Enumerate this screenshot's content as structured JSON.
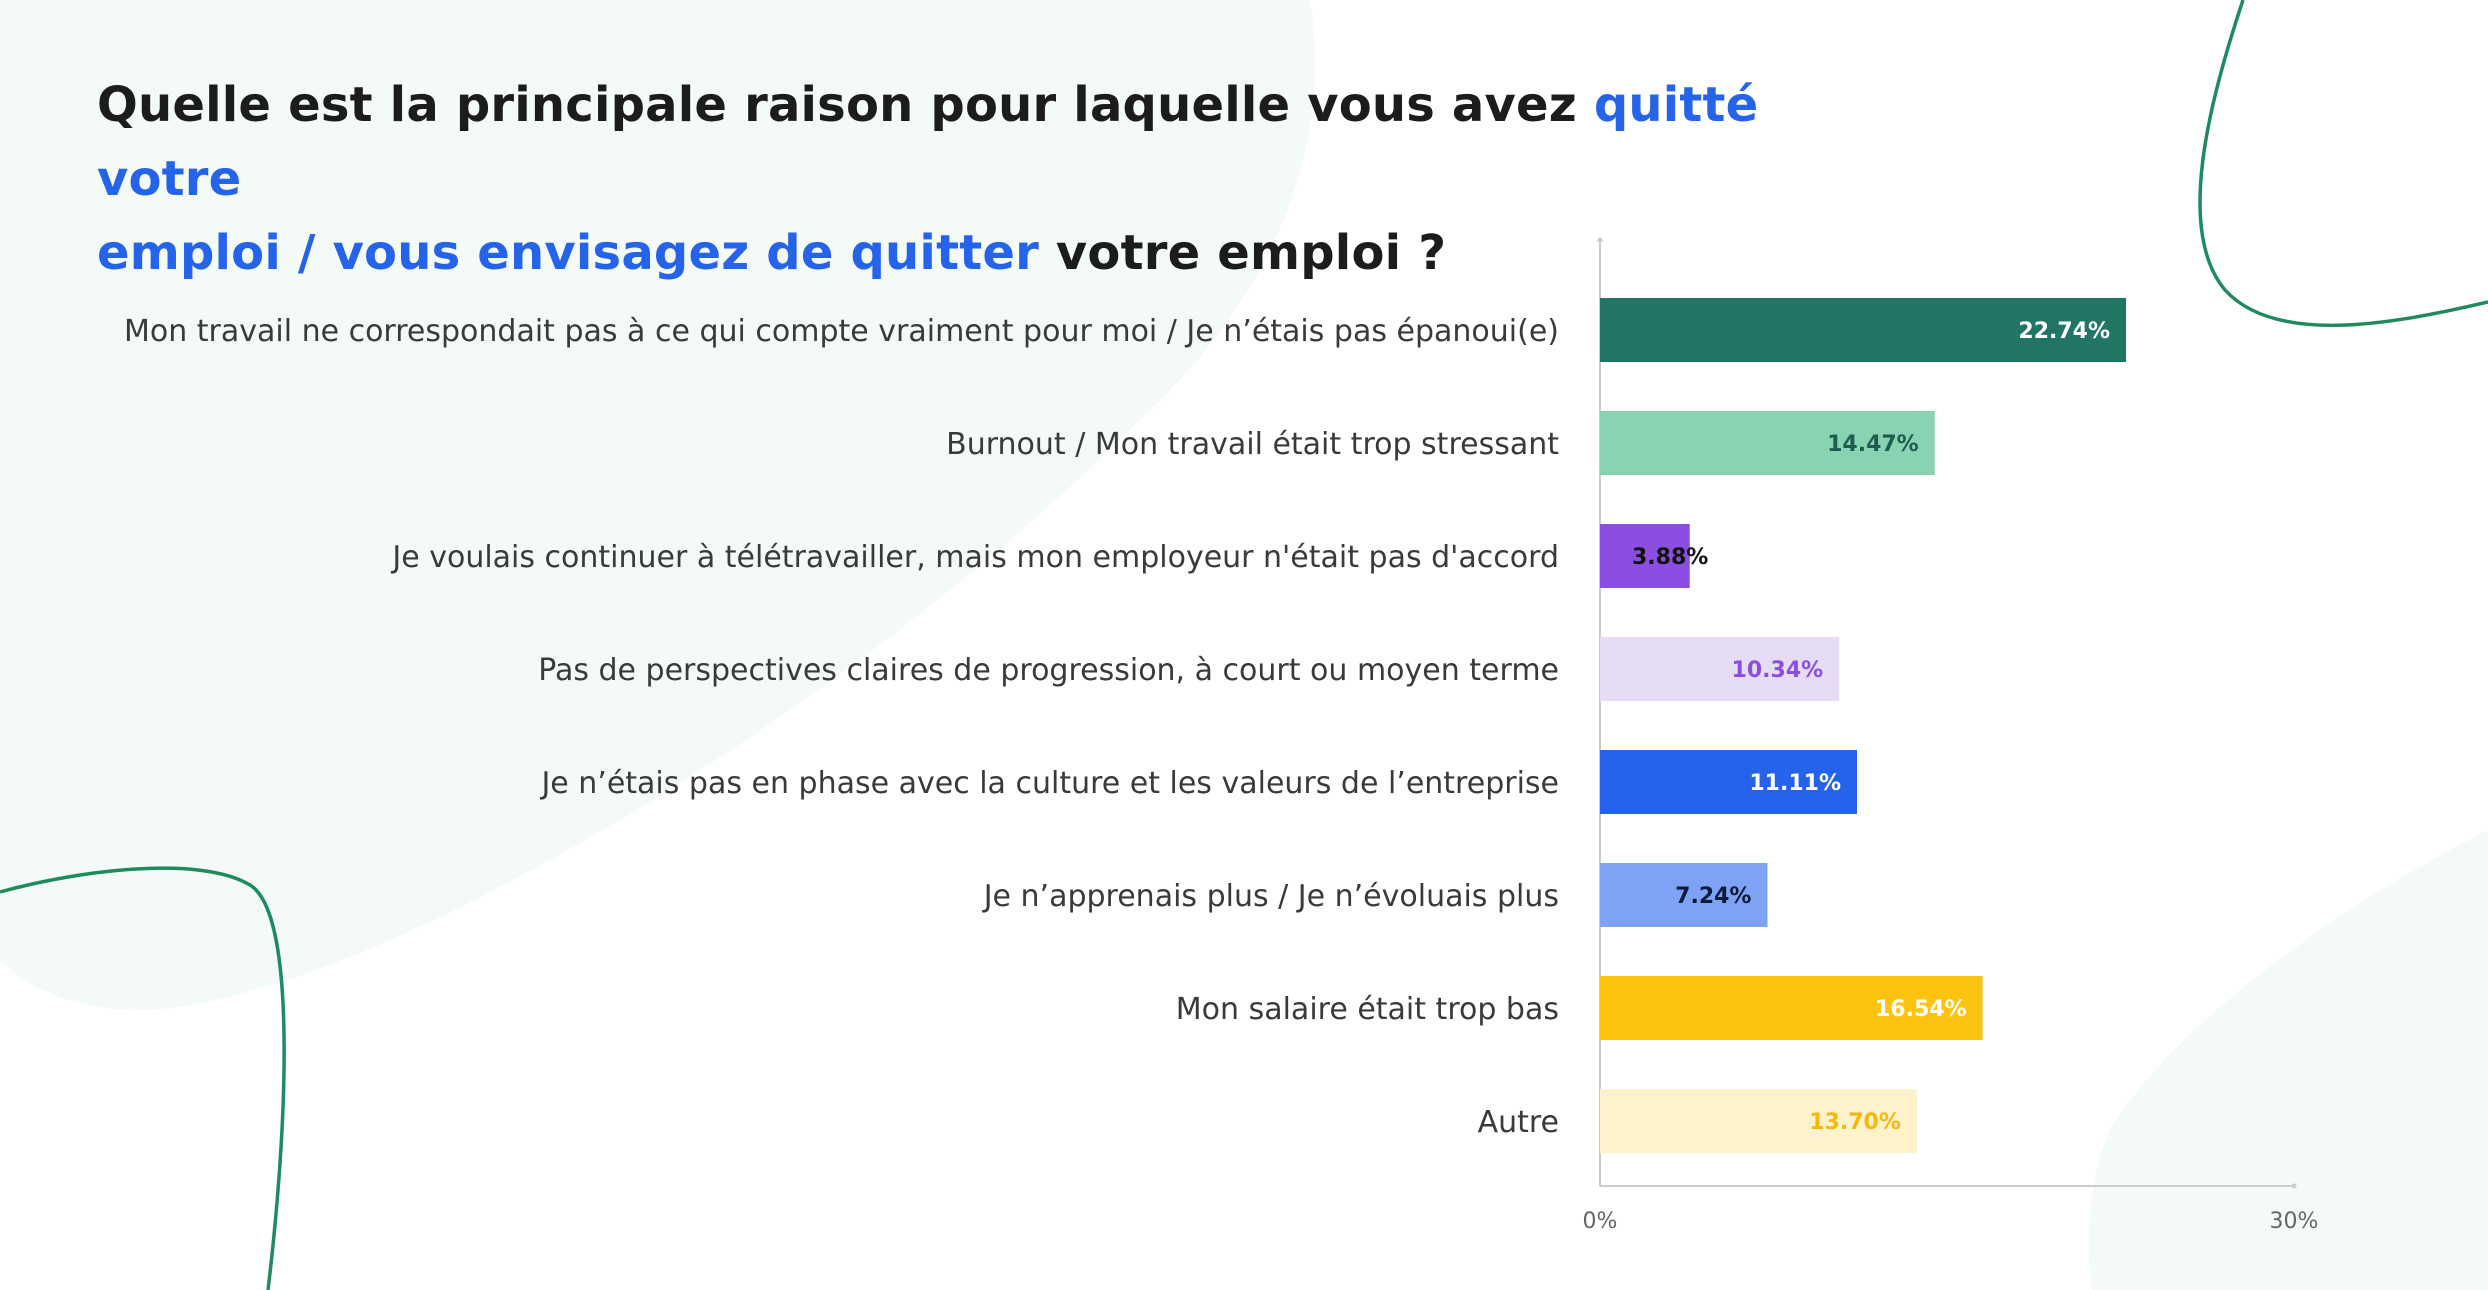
{
  "title": {
    "part1": "Quelle est la principale raison pour laquelle vous avez ",
    "highlight1": "quitté votre",
    "highlight2": "emploi / vous envisagez de quitter",
    "part2": " votre emploi ?"
  },
  "colors": {
    "highlight": "#2563eb",
    "background_blob": "#f4faf7",
    "decor_line": "#1e8a5e"
  },
  "chart_data": {
    "type": "bar",
    "orientation": "horizontal",
    "categories": [
      "Mon travail ne correspondait pas à ce qui compte vraiment pour moi / Je n’étais pas épanoui(e)",
      "Burnout / Mon travail était trop stressant",
      "Je voulais continuer à télétravailler, mais mon employeur n'était pas d'accord",
      "Pas de perspectives claires de progression, à court ou moyen terme",
      "Je n’étais pas en phase avec la culture et les valeurs de l’entreprise",
      "Je n’apprenais plus / Je n’évoluais plus",
      "Mon salaire était trop bas",
      "Autre"
    ],
    "values": [
      22.74,
      14.47,
      3.88,
      10.34,
      11.11,
      7.24,
      16.54,
      13.7
    ],
    "value_labels": [
      "22.74%",
      "14.47%",
      "3.88%",
      "10.34%",
      "11.11%",
      "7.24%",
      "16.54%",
      "13.70%"
    ],
    "bar_colors": [
      "#207565",
      "#88d3b2",
      "#8b4ee0",
      "#e6dcf6",
      "#2563eb",
      "#7ea3f5",
      "#fcc411",
      "#fdf2cc"
    ],
    "label_colors": [
      "#ffffff",
      "#1f5c4f",
      "#111111",
      "#8b4ee0",
      "#ffffff",
      "#0f1b3d",
      "#ffffff",
      "#f2b90e"
    ],
    "xlim": [
      0,
      30
    ],
    "tick_labels": [
      "0%",
      "30%"
    ],
    "grid": false
  }
}
